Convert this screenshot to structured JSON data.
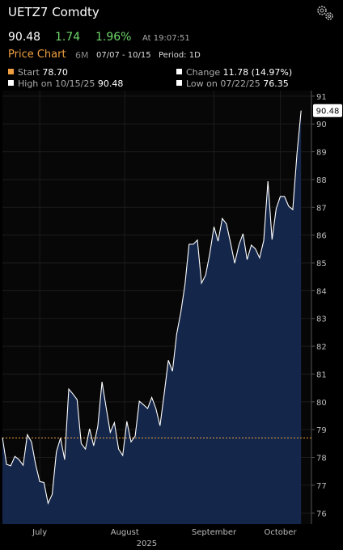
{
  "header": {
    "title": "UETZ7 Comdty",
    "last": "90.48",
    "change": "1.74",
    "change_pct": "1.96%",
    "time": "At 19:07:51",
    "chart_label": "Price Chart",
    "range": "6M",
    "dates": "07/07 - 10/15",
    "period": "Period: 1D"
  },
  "stats": [
    {
      "label": "Start",
      "value": "78.70"
    },
    {
      "label": "Change",
      "value": "11.78 (14.97%)"
    },
    {
      "label": "High on 10/15/25",
      "value": "90.48"
    },
    {
      "label": "Low on 07/22/25",
      "value": "76.35"
    }
  ],
  "chart_data": {
    "type": "line",
    "color": "#ffffff",
    "area_color": "#14264a",
    "values": [
      78.71,
      77.75,
      77.7,
      78.04,
      77.92,
      77.72,
      78.82,
      78.56,
      77.75,
      77.13,
      77.1,
      76.35,
      76.67,
      78.2,
      78.7,
      77.92,
      80.46,
      80.28,
      80.08,
      78.5,
      78.3,
      79.03,
      78.42,
      79.12,
      80.72,
      79.8,
      78.9,
      79.25,
      78.3,
      78.07,
      79.3,
      78.56,
      78.77,
      80.02,
      79.9,
      79.76,
      80.16,
      79.76,
      79.14,
      80.3,
      81.5,
      81.1,
      82.44,
      83.22,
      84.21,
      85.67,
      85.67,
      85.82,
      84.27,
      84.56,
      85.35,
      86.3,
      85.78,
      86.6,
      86.4,
      85.72,
      84.99,
      85.64,
      86.05,
      85.12,
      85.64,
      85.5,
      85.18,
      85.8,
      87.94,
      85.84,
      86.95,
      87.39,
      87.39,
      87.04,
      86.92,
      88.93,
      90.48
    ],
    "start_line": 78.7,
    "xlim": [
      0,
      74.5
    ],
    "xticks": [
      {
        "value": 9,
        "label": "July"
      },
      {
        "value": 29.5,
        "label": "August"
      },
      {
        "value": 51,
        "label": "September"
      },
      {
        "value": 67,
        "label": "October"
      }
    ],
    "xlabel": "2025",
    "ylim": [
      75.6,
      91.2
    ],
    "yticks": [
      76,
      77,
      78,
      79,
      80,
      81,
      82,
      83,
      84,
      85,
      86,
      87,
      88,
      89,
      90,
      91
    ],
    "grid": true
  }
}
